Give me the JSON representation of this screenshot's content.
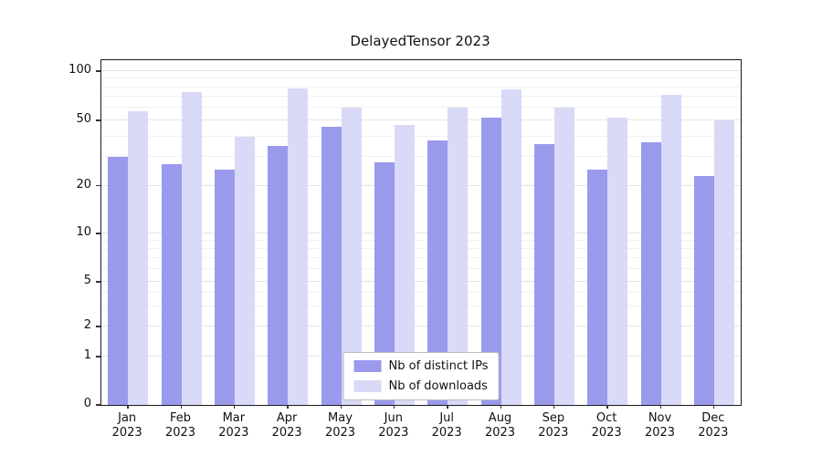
{
  "chart_data": {
    "type": "bar",
    "title": "DelayedTensor 2023",
    "categories": [
      "Jan 2023",
      "Feb 2023",
      "Mar 2023",
      "Apr 2023",
      "May 2023",
      "Jun 2023",
      "Jul 2023",
      "Aug 2023",
      "Sep 2023",
      "Oct 2023",
      "Nov 2023",
      "Dec 2023"
    ],
    "series": [
      {
        "name": "Nb of distinct IPs",
        "color": "#9a9aec",
        "values": [
          30,
          27,
          25,
          35,
          46,
          28,
          38,
          52,
          36,
          25,
          37,
          23
        ]
      },
      {
        "name": "Nb of downloads",
        "color": "#d9d9f8",
        "values": [
          57,
          75,
          40,
          78,
          60,
          47,
          60,
          77,
          60,
          52,
          72,
          50
        ]
      }
    ],
    "xlabel": "",
    "ylabel": "",
    "yscale": "symlog",
    "yticks": [
      0,
      1,
      2,
      5,
      10,
      20,
      50,
      100
    ],
    "yticks_minor": [
      3,
      4,
      6,
      7,
      8,
      9,
      30,
      40,
      60,
      70,
      80,
      90
    ],
    "ylim": [
      0,
      110
    ],
    "grid": true,
    "legend_position": "lower center",
    "background": "#ffffff"
  }
}
